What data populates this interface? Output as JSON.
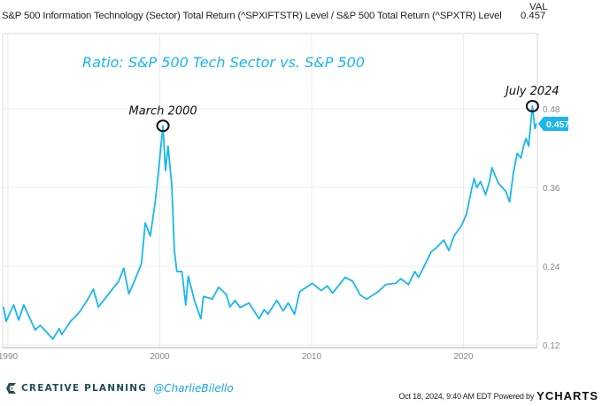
{
  "header": {
    "series_title": "S&P 500 Information Technology (Sector) Total Return (^SPXIFTSTR) Level / S&P 500 Total Return (^SPXTR) Level",
    "val_label": "VAL",
    "val_value": "0.457"
  },
  "footer": {
    "brand": "CREATIVE PLANNING",
    "handle": "@CharlieBilello",
    "timestamp": "Oct 18, 2024, 9:40 AM EDT Powered by",
    "ycharts": "YCHARTS"
  },
  "chart_data": {
    "type": "line",
    "title": "Ratio: S&P 500 Tech Sector vs. S&P 500",
    "xlabel": "",
    "ylabel": "",
    "x_ticks": [
      "1990",
      "2000",
      "2010",
      "2020"
    ],
    "y_ticks": [
      "0.12",
      "0.24",
      "0.36",
      "0.48"
    ],
    "ylim": [
      0.12,
      0.48
    ],
    "xlim": [
      "1989-08",
      "2024-10"
    ],
    "grid": true,
    "y_axis_side": "right",
    "line_color": "#1ab6ee",
    "last_value_label": "0.457",
    "annotations": [
      {
        "text": "March 2000",
        "x": "2000-03",
        "y": 0.454
      },
      {
        "text": "July 2024",
        "x": "2024-07",
        "y": 0.484
      }
    ],
    "series": [
      {
        "points": [
          [
            "1989-09",
            0.178
          ],
          [
            "1989-11",
            0.156
          ],
          [
            "1990-05",
            0.181
          ],
          [
            "1990-09",
            0.158
          ],
          [
            "1991-01",
            0.181
          ],
          [
            "1991-10",
            0.143
          ],
          [
            "1992-02",
            0.15
          ],
          [
            "1992-12",
            0.129
          ],
          [
            "1993-05",
            0.145
          ],
          [
            "1993-07",
            0.136
          ],
          [
            "1994-02",
            0.156
          ],
          [
            "1994-09",
            0.17
          ],
          [
            "1995-04",
            0.191
          ],
          [
            "1995-08",
            0.205
          ],
          [
            "1995-12",
            0.178
          ],
          [
            "1996-05",
            0.19
          ],
          [
            "1996-11",
            0.205
          ],
          [
            "1997-04",
            0.217
          ],
          [
            "1997-08",
            0.237
          ],
          [
            "1997-12",
            0.198
          ],
          [
            "1998-05",
            0.22
          ],
          [
            "1998-10",
            0.244
          ],
          [
            "1999-01",
            0.306
          ],
          [
            "1999-05",
            0.286
          ],
          [
            "1999-09",
            0.34
          ],
          [
            "1999-11",
            0.376
          ],
          [
            "2000-03",
            0.454
          ],
          [
            "2000-05",
            0.386
          ],
          [
            "2000-07",
            0.423
          ],
          [
            "2000-10",
            0.363
          ],
          [
            "2000-12",
            0.264
          ],
          [
            "2001-02",
            0.232
          ],
          [
            "2001-06",
            0.232
          ],
          [
            "2001-09",
            0.181
          ],
          [
            "2001-11",
            0.225
          ],
          [
            "2002-04",
            0.187
          ],
          [
            "2002-09",
            0.16
          ],
          [
            "2002-11",
            0.194
          ],
          [
            "2003-06",
            0.19
          ],
          [
            "2003-11",
            0.208
          ],
          [
            "2004-05",
            0.197
          ],
          [
            "2004-08",
            0.178
          ],
          [
            "2004-12",
            0.188
          ],
          [
            "2005-04",
            0.177
          ],
          [
            "2005-11",
            0.184
          ],
          [
            "2006-07",
            0.16
          ],
          [
            "2006-11",
            0.174
          ],
          [
            "2007-02",
            0.167
          ],
          [
            "2007-09",
            0.188
          ],
          [
            "2008-02",
            0.172
          ],
          [
            "2008-06",
            0.184
          ],
          [
            "2008-11",
            0.167
          ],
          [
            "2009-03",
            0.201
          ],
          [
            "2010-01",
            0.214
          ],
          [
            "2010-08",
            0.203
          ],
          [
            "2011-01",
            0.21
          ],
          [
            "2011-05",
            0.199
          ],
          [
            "2012-03",
            0.223
          ],
          [
            "2012-09",
            0.217
          ],
          [
            "2013-03",
            0.196
          ],
          [
            "2013-08",
            0.19
          ],
          [
            "2014-05",
            0.201
          ],
          [
            "2014-11",
            0.212
          ],
          [
            "2015-07",
            0.214
          ],
          [
            "2015-11",
            0.221
          ],
          [
            "2016-05",
            0.212
          ],
          [
            "2016-10",
            0.232
          ],
          [
            "2017-01",
            0.223
          ],
          [
            "2017-07",
            0.246
          ],
          [
            "2017-11",
            0.262
          ],
          [
            "2018-03",
            0.268
          ],
          [
            "2018-09",
            0.28
          ],
          [
            "2019-01",
            0.264
          ],
          [
            "2019-05",
            0.286
          ],
          [
            "2019-11",
            0.302
          ],
          [
            "2020-03",
            0.32
          ],
          [
            "2020-07",
            0.358
          ],
          [
            "2020-09",
            0.374
          ],
          [
            "2020-11",
            0.36
          ],
          [
            "2021-02",
            0.369
          ],
          [
            "2021-06",
            0.349
          ],
          [
            "2021-09",
            0.369
          ],
          [
            "2021-11",
            0.39
          ],
          [
            "2022-04",
            0.367
          ],
          [
            "2022-10",
            0.354
          ],
          [
            "2023-01",
            0.338
          ],
          [
            "2023-04",
            0.383
          ],
          [
            "2023-07",
            0.412
          ],
          [
            "2023-10",
            0.405
          ],
          [
            "2023-12",
            0.423
          ],
          [
            "2024-02",
            0.435
          ],
          [
            "2024-04",
            0.423
          ],
          [
            "2024-07",
            0.484
          ],
          [
            "2024-09",
            0.45
          ],
          [
            "2024-10",
            0.457
          ]
        ]
      }
    ]
  }
}
